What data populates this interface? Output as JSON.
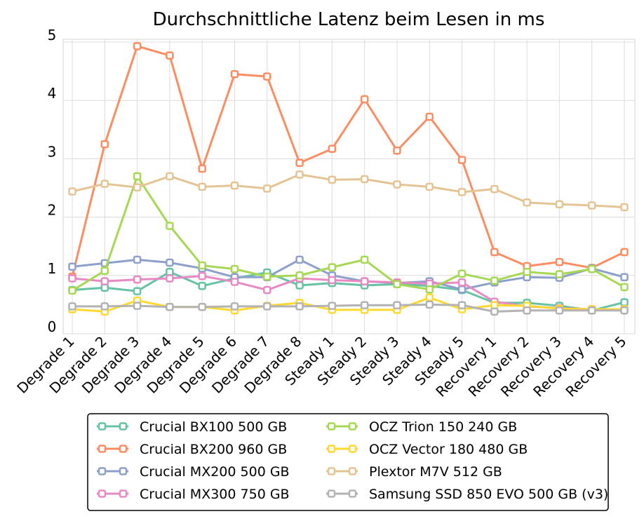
{
  "chart_data": {
    "type": "line",
    "title": "Durchschnittliche Latenz beim Lesen in ms",
    "xlabel": "",
    "ylabel": "",
    "ylim": [
      0,
      5
    ],
    "yticks": [
      "0",
      "1",
      "2",
      "3",
      "4",
      "5"
    ],
    "grid": true,
    "legend_position": "bottom",
    "categories": [
      "Degrade 1",
      "Degrade 2",
      "Degrade 3",
      "Degrade 4",
      "Degrade 5",
      "Degrade 6",
      "Degrade 7",
      "Degrade 8",
      "Steady 1",
      "Steady 2",
      "Steady 3",
      "Steady 4",
      "Steady 5",
      "Recovery 1",
      "Recovery 2",
      "Recovery 3",
      "Recovery 4",
      "Recovery 5"
    ],
    "series": [
      {
        "name": "Crucial BX100 500 GB",
        "color": "#66c2a5",
        "values": [
          0.75,
          0.79,
          0.73,
          1.06,
          0.82,
          0.95,
          1.05,
          0.83,
          0.87,
          0.83,
          0.85,
          0.82,
          0.75,
          0.53,
          0.53,
          0.48,
          0.4,
          0.54
        ]
      },
      {
        "name": "Crucial BX200 960 GB",
        "color": "#fc8d62",
        "values": [
          0.98,
          3.25,
          4.93,
          4.77,
          2.83,
          4.45,
          4.41,
          2.93,
          3.17,
          4.02,
          3.14,
          3.72,
          2.98,
          1.4,
          1.16,
          1.23,
          1.13,
          1.4
        ]
      },
      {
        "name": "Crucial MX200 500 GB",
        "color": "#8da0cb",
        "values": [
          1.15,
          1.21,
          1.27,
          1.22,
          1.12,
          0.97,
          0.97,
          1.27,
          1.0,
          0.9,
          0.87,
          0.9,
          0.76,
          0.88,
          0.97,
          0.96,
          1.12,
          0.97
        ]
      },
      {
        "name": "Crucial MX300 750 GB",
        "color": "#e78ac3",
        "values": [
          0.95,
          0.9,
          0.93,
          0.95,
          0.99,
          0.89,
          0.75,
          0.95,
          0.92,
          0.9,
          0.88,
          0.86,
          0.88,
          0.55,
          0.47,
          0.44,
          0.42,
          0.42
        ]
      },
      {
        "name": "OCZ Trion 150 240 GB",
        "color": "#a6d854",
        "values": [
          0.74,
          1.08,
          2.7,
          1.85,
          1.17,
          1.11,
          0.98,
          1.0,
          1.14,
          1.27,
          0.85,
          0.76,
          1.03,
          0.91,
          1.06,
          1.02,
          1.11,
          0.8
        ]
      },
      {
        "name": "OCZ Vector 180 480 GB",
        "color": "#ffd92f",
        "values": [
          0.42,
          0.38,
          0.57,
          0.46,
          0.46,
          0.4,
          0.48,
          0.53,
          0.41,
          0.41,
          0.41,
          0.62,
          0.42,
          0.49,
          0.48,
          0.43,
          0.42,
          0.42
        ]
      },
      {
        "name": "Plextor M7V 512 GB",
        "color": "#e5c494",
        "values": [
          2.44,
          2.57,
          2.51,
          2.7,
          2.52,
          2.54,
          2.49,
          2.73,
          2.64,
          2.65,
          2.56,
          2.52,
          2.43,
          2.48,
          2.25,
          2.22,
          2.2,
          2.17
        ]
      },
      {
        "name": "Samsung SSD 850 EVO 500 GB (v3)",
        "color": "#b3b3b3",
        "values": [
          0.47,
          0.47,
          0.48,
          0.46,
          0.46,
          0.47,
          0.47,
          0.47,
          0.48,
          0.49,
          0.49,
          0.5,
          0.49,
          0.38,
          0.4,
          0.4,
          0.4,
          0.4
        ]
      }
    ]
  }
}
